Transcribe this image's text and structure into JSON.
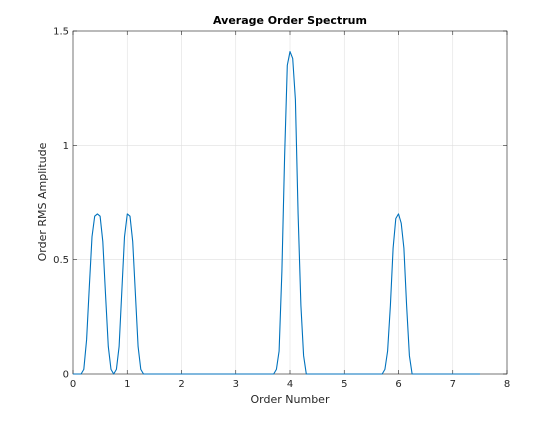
{
  "chart_data": {
    "type": "line",
    "title": "Average Order Spectrum",
    "xlabel": "Order Number",
    "ylabel": "Order RMS Amplitude",
    "xlim": [
      0,
      8
    ],
    "ylim": [
      0,
      1.5
    ],
    "xticks": [
      "0",
      "1",
      "2",
      "3",
      "4",
      "5",
      "6",
      "7",
      "8"
    ],
    "yticks": [
      "0",
      "0.5",
      "1",
      "1.5"
    ],
    "grid": true,
    "series": [
      {
        "color": "#0072BD",
        "x": [
          0.0,
          0.05,
          0.1,
          0.15,
          0.2,
          0.25,
          0.3,
          0.35,
          0.4,
          0.45,
          0.5,
          0.55,
          0.6,
          0.65,
          0.7,
          0.75,
          0.8,
          0.85,
          0.9,
          0.95,
          1.0,
          1.05,
          1.1,
          1.15,
          1.2,
          1.25,
          1.3,
          1.35,
          1.4,
          1.5,
          2.0,
          2.5,
          3.0,
          3.5,
          3.7,
          3.75,
          3.8,
          3.85,
          3.9,
          3.95,
          4.0,
          4.05,
          4.1,
          4.15,
          4.2,
          4.25,
          4.3,
          4.35,
          4.4,
          4.5,
          5.0,
          5.5,
          5.7,
          5.75,
          5.8,
          5.85,
          5.9,
          5.95,
          6.0,
          6.05,
          6.1,
          6.15,
          6.2,
          6.25,
          6.3,
          6.35,
          7.0,
          7.5
        ],
        "values": [
          0.0,
          0.0,
          0.0,
          0.0,
          0.02,
          0.15,
          0.38,
          0.6,
          0.69,
          0.7,
          0.69,
          0.58,
          0.35,
          0.12,
          0.02,
          0.0,
          0.02,
          0.12,
          0.36,
          0.6,
          0.7,
          0.69,
          0.58,
          0.35,
          0.12,
          0.02,
          0.0,
          0.0,
          0.0,
          0.0,
          0.0,
          0.0,
          0.0,
          0.0,
          0.0,
          0.02,
          0.1,
          0.45,
          0.95,
          1.35,
          1.41,
          1.38,
          1.2,
          0.7,
          0.3,
          0.08,
          0.0,
          0.0,
          0.0,
          0.0,
          0.0,
          0.0,
          0.0,
          0.02,
          0.1,
          0.3,
          0.55,
          0.68,
          0.7,
          0.66,
          0.55,
          0.3,
          0.08,
          0.0,
          0.0,
          0.0,
          0.0,
          0.0
        ]
      }
    ]
  }
}
